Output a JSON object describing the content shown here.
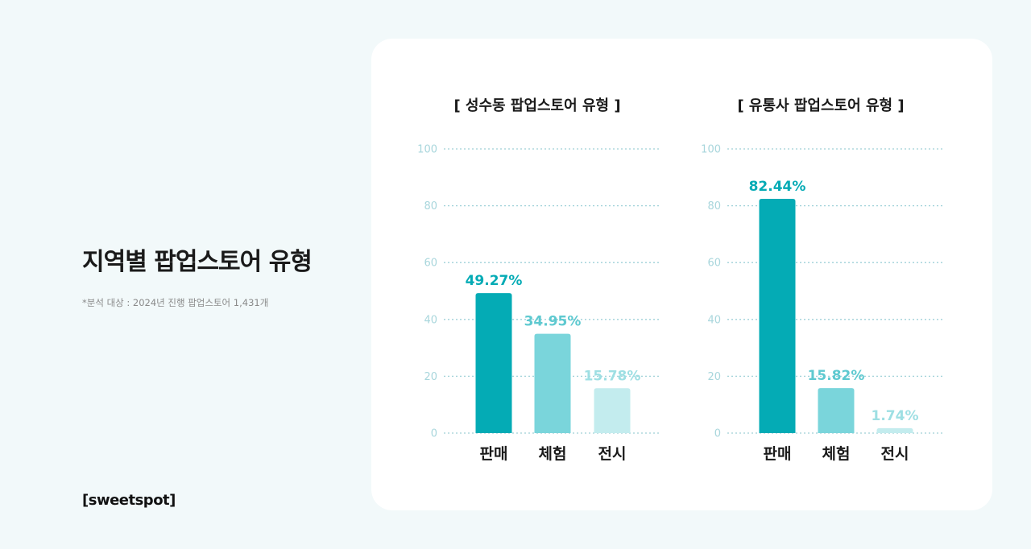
{
  "header": {
    "title": "지역별 팝업스토어 유형",
    "note": "*분석 대상 : 2024년 진행 팝업스토어 1,431개"
  },
  "brand": {
    "logo_text": "[sweetspot]"
  },
  "colors": {
    "background": "#f2f9fa",
    "card": "#ffffff",
    "gridline": "#9fd1d8",
    "tick": "#a8d6dc",
    "sales": "#04abb5",
    "experience": "#7ad5db",
    "exhibition": "#c3ecee"
  },
  "chart_data": [
    {
      "type": "bar",
      "title": "[ 성수동 팝업스토어 유형 ]",
      "categories": [
        "판매",
        "체험",
        "전시"
      ],
      "values": [
        49.27,
        34.95,
        15.78
      ],
      "value_labels": [
        "49.27%",
        "34.95%",
        "15.78%"
      ],
      "bar_colors": [
        "#04abb5",
        "#7ad5db",
        "#c3ecee"
      ],
      "label_colors": [
        "#04abb5",
        "#5ec9d0",
        "#9edfe3"
      ],
      "ylim": [
        0,
        100
      ],
      "yticks": [
        "0",
        "20",
        "40",
        "60",
        "80",
        "100"
      ],
      "grid": true,
      "xlabel": "",
      "ylabel": ""
    },
    {
      "type": "bar",
      "title": "[ 유통사 팝업스토어 유형 ]",
      "categories": [
        "판매",
        "체험",
        "전시"
      ],
      "values": [
        82.44,
        15.82,
        1.74
      ],
      "value_labels": [
        "82.44%",
        "15.82%",
        "1.74%"
      ],
      "bar_colors": [
        "#04abb5",
        "#7ad5db",
        "#c3ecee"
      ],
      "label_colors": [
        "#04abb5",
        "#5ec9d0",
        "#9edfe3"
      ],
      "ylim": [
        0,
        100
      ],
      "yticks": [
        "0",
        "20",
        "40",
        "60",
        "80",
        "100"
      ],
      "grid": true,
      "xlabel": "",
      "ylabel": ""
    }
  ]
}
